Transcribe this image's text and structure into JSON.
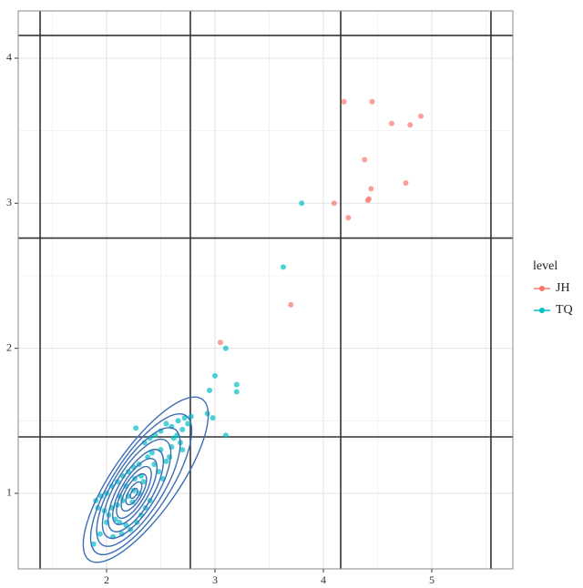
{
  "chart_data": {
    "type": "scatter",
    "xlim": [
      1.185,
      5.748
    ],
    "ylim": [
      0.479,
      4.326
    ],
    "xticks": [
      2,
      3,
      4,
      5
    ],
    "yticks": [
      1,
      2,
      3,
      4
    ],
    "xminor": [
      1.5,
      2.5,
      3.5,
      4.5,
      5.5
    ],
    "yminor": [
      1.5,
      2.5,
      3.5
    ],
    "vlines": [
      1.387,
      2.773,
      4.16,
      5.546
    ],
    "hlines": [
      1.389,
      2.76,
      4.157
    ],
    "grid": true,
    "legend_title": "level",
    "legend_position": "right",
    "series": [
      {
        "name": "JH",
        "color": "#F8766D",
        "x": [
          4.19,
          4.45,
          4.63,
          4.8,
          4.9,
          4.38,
          4.76,
          4.44,
          4.42,
          4.41,
          4.1,
          4.23,
          3.7,
          3.05
        ],
        "values": [
          3.7,
          3.7,
          3.55,
          3.54,
          3.6,
          3.3,
          3.14,
          3.1,
          3.03,
          3.02,
          3.0,
          2.9,
          2.3,
          2.04
        ]
      },
      {
        "name": "TQ",
        "color": "#00BFC4",
        "x": [
          3.8,
          3.63,
          3.1,
          3.0,
          2.95,
          3.2,
          3.2,
          2.98,
          3.1,
          2.93,
          2.72,
          2.75,
          2.78,
          2.66,
          2.6,
          2.55,
          2.7,
          2.65,
          2.5,
          2.45,
          2.4,
          2.35,
          2.27,
          2.5,
          2.6,
          2.7,
          2.55,
          2.42,
          2.38,
          2.3,
          2.25,
          2.2,
          2.15,
          2.1,
          2.05,
          2.0,
          1.95,
          1.9,
          1.92,
          1.98,
          2.02,
          2.08,
          2.12,
          2.18,
          2.22,
          2.28,
          2.32,
          2.36,
          2.4,
          2.3,
          2.25,
          2.2,
          2.15,
          2.1,
          2.05,
          2.0,
          2.26,
          2.32,
          2.18,
          2.12,
          2.44,
          2.48,
          2.52,
          2.62,
          2.68,
          2.58,
          2.34,
          2.14,
          1.94,
          1.88,
          2.06,
          2.24
        ],
        "values": [
          3.0,
          2.56,
          2.0,
          1.81,
          1.71,
          1.75,
          1.7,
          1.52,
          1.4,
          1.55,
          1.52,
          1.48,
          1.53,
          1.5,
          1.46,
          1.48,
          1.44,
          1.4,
          1.43,
          1.4,
          1.38,
          1.35,
          1.45,
          1.3,
          1.32,
          1.3,
          1.22,
          1.28,
          1.25,
          1.2,
          1.18,
          1.15,
          1.12,
          1.08,
          1.05,
          1.0,
          0.98,
          0.95,
          0.9,
          0.88,
          0.85,
          0.82,
          0.8,
          0.78,
          0.75,
          0.8,
          0.85,
          0.9,
          0.95,
          1.0,
          1.02,
          0.98,
          0.95,
          0.92,
          0.9,
          0.8,
          1.1,
          1.12,
          1.05,
          0.98,
          1.2,
          1.15,
          1.1,
          1.38,
          1.35,
          1.25,
          1.08,
          0.72,
          0.72,
          0.65,
          0.7,
          0.94
        ]
      }
    ]
  }
}
